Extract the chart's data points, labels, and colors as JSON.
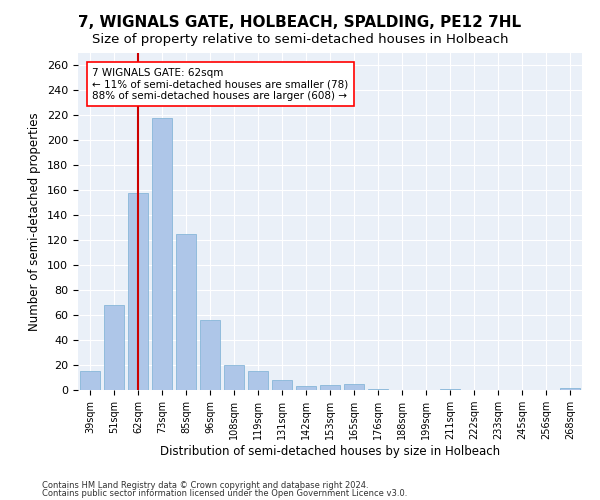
{
  "title": "7, WIGNALS GATE, HOLBEACH, SPALDING, PE12 7HL",
  "subtitle": "Size of property relative to semi-detached houses in Holbeach",
  "xlabel": "Distribution of semi-detached houses by size in Holbeach",
  "ylabel": "Number of semi-detached properties",
  "categories": [
    "39sqm",
    "51sqm",
    "62sqm",
    "73sqm",
    "85sqm",
    "96sqm",
    "108sqm",
    "119sqm",
    "131sqm",
    "142sqm",
    "153sqm",
    "165sqm",
    "176sqm",
    "188sqm",
    "199sqm",
    "211sqm",
    "222sqm",
    "233sqm",
    "245sqm",
    "256sqm",
    "268sqm"
  ],
  "values": [
    15,
    68,
    158,
    218,
    125,
    56,
    20,
    15,
    8,
    3,
    4,
    5,
    1,
    0,
    0,
    1,
    0,
    0,
    0,
    0,
    2
  ],
  "bar_color": "#aec6e8",
  "bar_edge_color": "#7aafd4",
  "highlight_index": 2,
  "highlight_color": "#cc0000",
  "property_label": "7 WIGNALS GATE: 62sqm",
  "annotation_line1": "← 11% of semi-detached houses are smaller (78)",
  "annotation_line2": "88% of semi-detached houses are larger (608) →",
  "annotation_fontsize": 7.5,
  "title_fontsize": 11,
  "subtitle_fontsize": 9.5,
  "footer1": "Contains HM Land Registry data © Crown copyright and database right 2024.",
  "footer2": "Contains public sector information licensed under the Open Government Licence v3.0.",
  "ylim": [
    0,
    270
  ],
  "yticks": [
    0,
    20,
    40,
    60,
    80,
    100,
    120,
    140,
    160,
    180,
    200,
    220,
    240,
    260
  ],
  "background_color": "#eaf0f8",
  "grid_color": "#ffffff"
}
